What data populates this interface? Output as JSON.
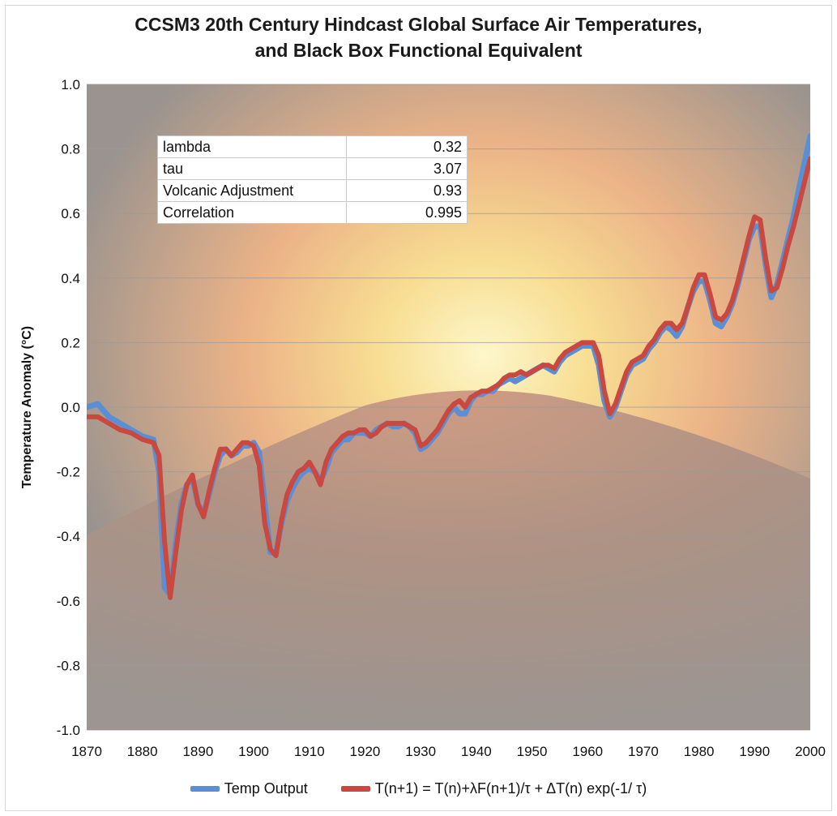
{
  "chart_data": {
    "type": "line",
    "title": "CCSM3 20th Century Hindcast Global Surface Air Temperatures,",
    "subtitle": "and Black Box Functional Equivalent",
    "xlabel": "",
    "ylabel": "Temperature Anomaly (°C)",
    "xlim": [
      1870,
      2000
    ],
    "ylim": [
      -1.0,
      1.0
    ],
    "x_ticks": [
      "1870",
      "1880",
      "1890",
      "1900",
      "1910",
      "1920",
      "1930",
      "1940",
      "1950",
      "1960",
      "1970",
      "1980",
      "1990",
      "2000"
    ],
    "y_ticks": [
      "1.0",
      "0.8",
      "0.6",
      "0.4",
      "0.2",
      "0.0",
      "-0.2",
      "-0.4",
      "-0.6",
      "-0.8",
      "-1.0"
    ],
    "grid": true,
    "legend_position": "bottom",
    "series": [
      {
        "name": "Temp Output",
        "color": "#5b8fd4",
        "points": [
          [
            1870,
            0.0
          ],
          [
            1872,
            0.01
          ],
          [
            1874,
            -0.03
          ],
          [
            1876,
            -0.05
          ],
          [
            1878,
            -0.07
          ],
          [
            1880,
            -0.09
          ],
          [
            1882,
            -0.1
          ],
          [
            1883,
            -0.2
          ],
          [
            1884,
            -0.56
          ],
          [
            1885,
            -0.58
          ],
          [
            1886,
            -0.42
          ],
          [
            1887,
            -0.3
          ],
          [
            1888,
            -0.24
          ],
          [
            1889,
            -0.22
          ],
          [
            1890,
            -0.3
          ],
          [
            1891,
            -0.33
          ],
          [
            1892,
            -0.27
          ],
          [
            1893,
            -0.2
          ],
          [
            1894,
            -0.15
          ],
          [
            1895,
            -0.13
          ],
          [
            1896,
            -0.15
          ],
          [
            1897,
            -0.14
          ],
          [
            1898,
            -0.12
          ],
          [
            1899,
            -0.12
          ],
          [
            1900,
            -0.11
          ],
          [
            1901,
            -0.14
          ],
          [
            1902,
            -0.3
          ],
          [
            1903,
            -0.45
          ],
          [
            1904,
            -0.45
          ],
          [
            1905,
            -0.36
          ],
          [
            1906,
            -0.29
          ],
          [
            1907,
            -0.25
          ],
          [
            1908,
            -0.22
          ],
          [
            1909,
            -0.2
          ],
          [
            1910,
            -0.19
          ],
          [
            1911,
            -0.2
          ],
          [
            1912,
            -0.23
          ],
          [
            1913,
            -0.19
          ],
          [
            1914,
            -0.14
          ],
          [
            1915,
            -0.12
          ],
          [
            1916,
            -0.1
          ],
          [
            1917,
            -0.1
          ],
          [
            1918,
            -0.08
          ],
          [
            1919,
            -0.08
          ],
          [
            1920,
            -0.08
          ],
          [
            1921,
            -0.09
          ],
          [
            1922,
            -0.07
          ],
          [
            1923,
            -0.06
          ],
          [
            1924,
            -0.05
          ],
          [
            1925,
            -0.06
          ],
          [
            1926,
            -0.06
          ],
          [
            1927,
            -0.05
          ],
          [
            1928,
            -0.06
          ],
          [
            1929,
            -0.08
          ],
          [
            1930,
            -0.13
          ],
          [
            1931,
            -0.12
          ],
          [
            1932,
            -0.1
          ],
          [
            1933,
            -0.08
          ],
          [
            1934,
            -0.05
          ],
          [
            1935,
            -0.02
          ],
          [
            1936,
            0.0
          ],
          [
            1937,
            -0.02
          ],
          [
            1938,
            -0.02
          ],
          [
            1939,
            0.02
          ],
          [
            1940,
            0.04
          ],
          [
            1941,
            0.04
          ],
          [
            1942,
            0.05
          ],
          [
            1943,
            0.05
          ],
          [
            1944,
            0.07
          ],
          [
            1945,
            0.08
          ],
          [
            1946,
            0.09
          ],
          [
            1947,
            0.08
          ],
          [
            1948,
            0.09
          ],
          [
            1949,
            0.1
          ],
          [
            1950,
            0.11
          ],
          [
            1951,
            0.12
          ],
          [
            1952,
            0.13
          ],
          [
            1953,
            0.12
          ],
          [
            1954,
            0.11
          ],
          [
            1955,
            0.14
          ],
          [
            1956,
            0.16
          ],
          [
            1957,
            0.17
          ],
          [
            1958,
            0.18
          ],
          [
            1959,
            0.19
          ],
          [
            1960,
            0.19
          ],
          [
            1961,
            0.19
          ],
          [
            1962,
            0.13
          ],
          [
            1963,
            0.02
          ],
          [
            1964,
            -0.03
          ],
          [
            1965,
            0.0
          ],
          [
            1966,
            0.05
          ],
          [
            1967,
            0.1
          ],
          [
            1968,
            0.13
          ],
          [
            1969,
            0.14
          ],
          [
            1970,
            0.15
          ],
          [
            1971,
            0.18
          ],
          [
            1972,
            0.2
          ],
          [
            1973,
            0.23
          ],
          [
            1974,
            0.25
          ],
          [
            1975,
            0.24
          ],
          [
            1976,
            0.22
          ],
          [
            1977,
            0.25
          ],
          [
            1978,
            0.31
          ],
          [
            1979,
            0.36
          ],
          [
            1980,
            0.39
          ],
          [
            1981,
            0.39
          ],
          [
            1982,
            0.33
          ],
          [
            1983,
            0.26
          ],
          [
            1984,
            0.25
          ],
          [
            1985,
            0.28
          ],
          [
            1986,
            0.32
          ],
          [
            1987,
            0.38
          ],
          [
            1988,
            0.45
          ],
          [
            1989,
            0.52
          ],
          [
            1990,
            0.56
          ],
          [
            1991,
            0.56
          ],
          [
            1992,
            0.44
          ],
          [
            1993,
            0.34
          ],
          [
            1994,
            0.38
          ],
          [
            1995,
            0.45
          ],
          [
            1996,
            0.52
          ],
          [
            1997,
            0.59
          ],
          [
            1998,
            0.68
          ],
          [
            1999,
            0.76
          ],
          [
            2000,
            0.84
          ]
        ]
      },
      {
        "name": "T(n+1) = T(n)+λF(n+1)/τ + ΔT(n) exp(-1/ τ)",
        "color": "#c94840",
        "points": [
          [
            1870,
            -0.03
          ],
          [
            1872,
            -0.03
          ],
          [
            1874,
            -0.05
          ],
          [
            1876,
            -0.07
          ],
          [
            1878,
            -0.08
          ],
          [
            1880,
            -0.1
          ],
          [
            1882,
            -0.11
          ],
          [
            1883,
            -0.15
          ],
          [
            1884,
            -0.42
          ],
          [
            1885,
            -0.59
          ],
          [
            1886,
            -0.45
          ],
          [
            1887,
            -0.32
          ],
          [
            1888,
            -0.24
          ],
          [
            1889,
            -0.21
          ],
          [
            1890,
            -0.3
          ],
          [
            1891,
            -0.34
          ],
          [
            1892,
            -0.26
          ],
          [
            1893,
            -0.19
          ],
          [
            1894,
            -0.13
          ],
          [
            1895,
            -0.13
          ],
          [
            1896,
            -0.15
          ],
          [
            1897,
            -0.13
          ],
          [
            1898,
            -0.11
          ],
          [
            1899,
            -0.11
          ],
          [
            1900,
            -0.12
          ],
          [
            1901,
            -0.18
          ],
          [
            1902,
            -0.36
          ],
          [
            1903,
            -0.44
          ],
          [
            1904,
            -0.46
          ],
          [
            1905,
            -0.35
          ],
          [
            1906,
            -0.27
          ],
          [
            1907,
            -0.23
          ],
          [
            1908,
            -0.2
          ],
          [
            1909,
            -0.19
          ],
          [
            1910,
            -0.17
          ],
          [
            1911,
            -0.2
          ],
          [
            1912,
            -0.24
          ],
          [
            1913,
            -0.17
          ],
          [
            1914,
            -0.13
          ],
          [
            1915,
            -0.11
          ],
          [
            1916,
            -0.09
          ],
          [
            1917,
            -0.08
          ],
          [
            1918,
            -0.08
          ],
          [
            1919,
            -0.07
          ],
          [
            1920,
            -0.07
          ],
          [
            1921,
            -0.09
          ],
          [
            1922,
            -0.08
          ],
          [
            1923,
            -0.06
          ],
          [
            1924,
            -0.05
          ],
          [
            1925,
            -0.05
          ],
          [
            1926,
            -0.05
          ],
          [
            1927,
            -0.05
          ],
          [
            1928,
            -0.06
          ],
          [
            1929,
            -0.07
          ],
          [
            1930,
            -0.12
          ],
          [
            1931,
            -0.11
          ],
          [
            1932,
            -0.09
          ],
          [
            1933,
            -0.07
          ],
          [
            1934,
            -0.04
          ],
          [
            1935,
            -0.01
          ],
          [
            1936,
            0.01
          ],
          [
            1937,
            0.02
          ],
          [
            1938,
            0.0
          ],
          [
            1939,
            0.03
          ],
          [
            1940,
            0.04
          ],
          [
            1941,
            0.05
          ],
          [
            1942,
            0.05
          ],
          [
            1943,
            0.06
          ],
          [
            1944,
            0.07
          ],
          [
            1945,
            0.09
          ],
          [
            1946,
            0.1
          ],
          [
            1947,
            0.1
          ],
          [
            1948,
            0.11
          ],
          [
            1949,
            0.1
          ],
          [
            1950,
            0.11
          ],
          [
            1951,
            0.12
          ],
          [
            1952,
            0.13
          ],
          [
            1953,
            0.13
          ],
          [
            1954,
            0.12
          ],
          [
            1955,
            0.15
          ],
          [
            1956,
            0.17
          ],
          [
            1957,
            0.18
          ],
          [
            1958,
            0.19
          ],
          [
            1959,
            0.2
          ],
          [
            1960,
            0.2
          ],
          [
            1961,
            0.2
          ],
          [
            1962,
            0.16
          ],
          [
            1963,
            0.05
          ],
          [
            1964,
            -0.02
          ],
          [
            1965,
            0.01
          ],
          [
            1966,
            0.06
          ],
          [
            1967,
            0.11
          ],
          [
            1968,
            0.14
          ],
          [
            1969,
            0.15
          ],
          [
            1970,
            0.16
          ],
          [
            1971,
            0.19
          ],
          [
            1972,
            0.21
          ],
          [
            1973,
            0.24
          ],
          [
            1974,
            0.26
          ],
          [
            1975,
            0.26
          ],
          [
            1976,
            0.24
          ],
          [
            1977,
            0.26
          ],
          [
            1978,
            0.31
          ],
          [
            1979,
            0.37
          ],
          [
            1980,
            0.41
          ],
          [
            1981,
            0.41
          ],
          [
            1982,
            0.35
          ],
          [
            1983,
            0.28
          ],
          [
            1984,
            0.27
          ],
          [
            1985,
            0.29
          ],
          [
            1986,
            0.33
          ],
          [
            1987,
            0.39
          ],
          [
            1988,
            0.46
          ],
          [
            1989,
            0.53
          ],
          [
            1990,
            0.59
          ],
          [
            1991,
            0.58
          ],
          [
            1992,
            0.46
          ],
          [
            1993,
            0.36
          ],
          [
            1994,
            0.37
          ],
          [
            1995,
            0.43
          ],
          [
            1996,
            0.5
          ],
          [
            1997,
            0.56
          ],
          [
            1998,
            0.63
          ],
          [
            1999,
            0.7
          ],
          [
            2000,
            0.77
          ]
        ]
      }
    ]
  },
  "parameters": [
    {
      "label": "lambda",
      "value": "0.32"
    },
    {
      "label": "tau",
      "value": "3.07"
    },
    {
      "label": "Volcanic Adjustment",
      "value": "0.93"
    },
    {
      "label": "Correlation",
      "value": "0.995"
    }
  ],
  "background_image": "volcanic-eruption-photo"
}
